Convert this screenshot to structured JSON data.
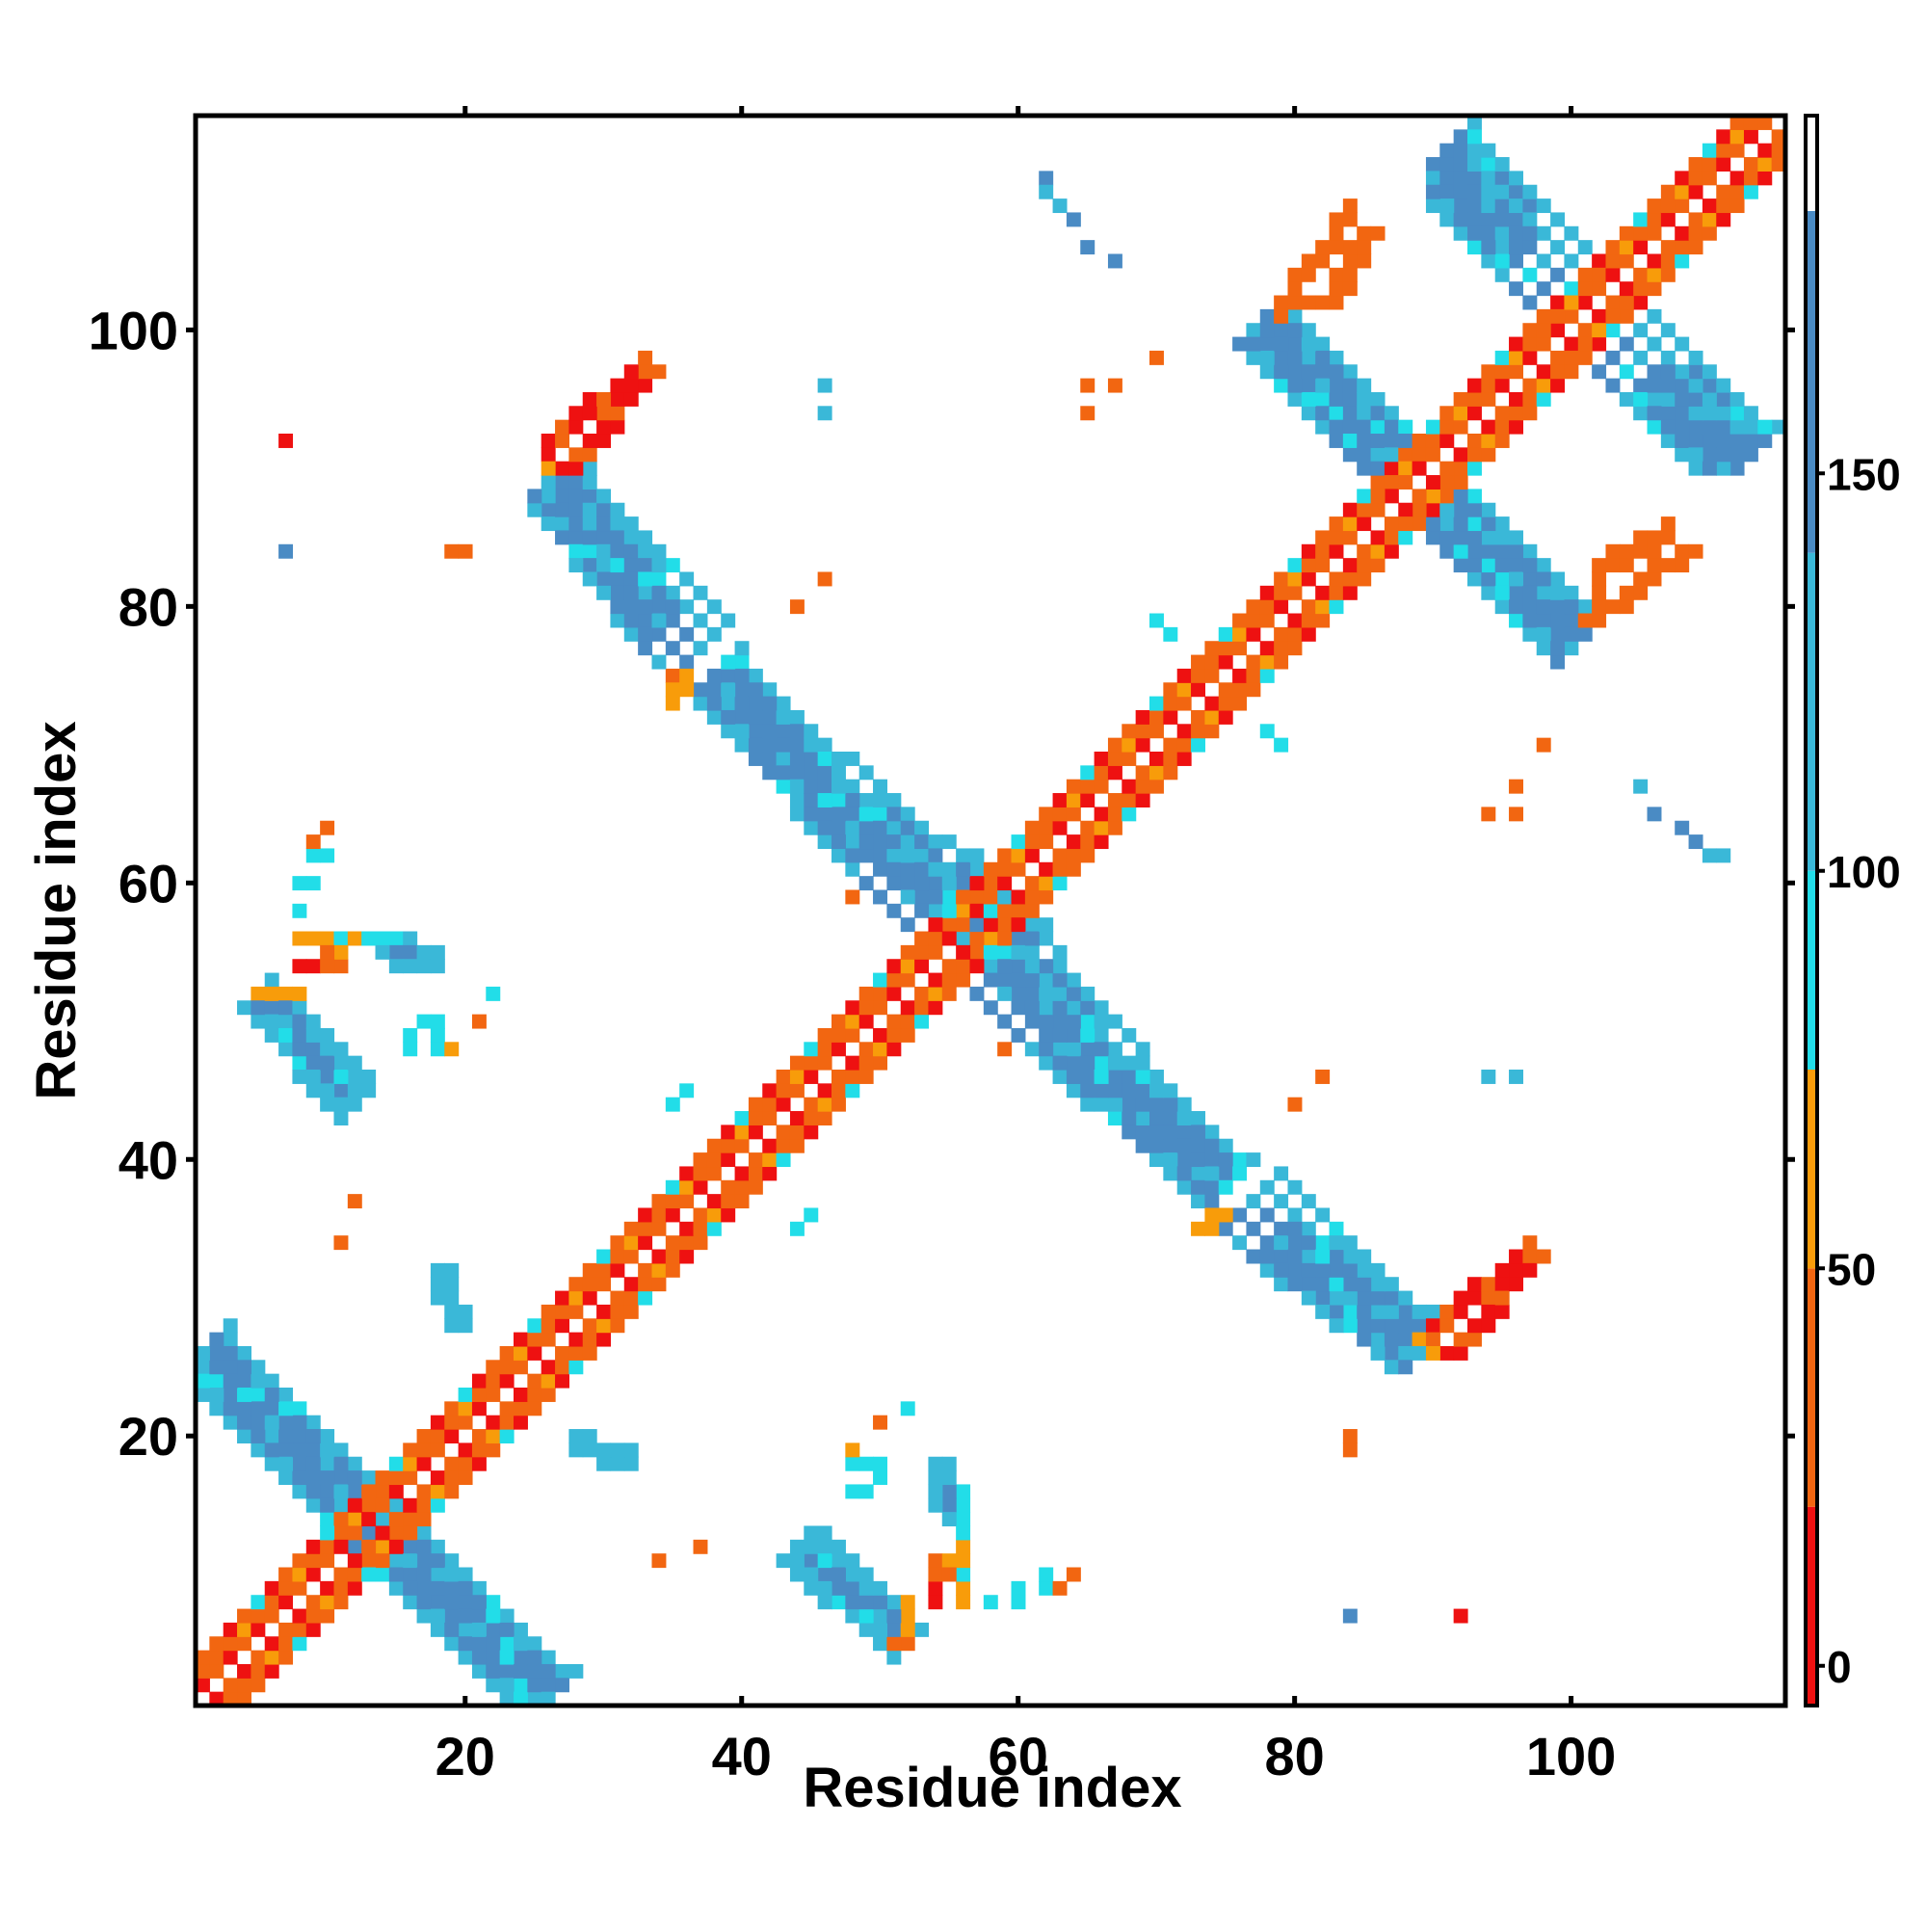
{
  "chart_data": {
    "type": "heatmap",
    "xlabel": "Residue index",
    "ylabel": "Residue index",
    "xlim": [
      1,
      115
    ],
    "ylim": [
      1,
      115
    ],
    "xticks": [
      20,
      40,
      60,
      80,
      100
    ],
    "yticks": [
      20,
      40,
      60,
      80,
      100
    ],
    "colorbar": {
      "ticks": [
        0,
        50,
        100,
        150
      ],
      "range": [
        -5,
        195
      ],
      "bands": [
        {
          "from": -5,
          "to": 20,
          "color": "#ee1111"
        },
        {
          "from": 20,
          "to": 50,
          "color": "#f26611"
        },
        {
          "from": 50,
          "to": 75,
          "color": "#f89c0a"
        },
        {
          "from": 75,
          "to": 100,
          "color": "#22dde8"
        },
        {
          "from": 100,
          "to": 140,
          "color": "#3ab8d8"
        },
        {
          "from": 140,
          "to": 183,
          "color": "#4a8bc4"
        },
        {
          "from": 183,
          "to": 195,
          "color": "#ffffff"
        }
      ]
    },
    "colors": {
      "red": "#ee1111",
      "orange": "#f26611",
      "amber": "#f89c0a",
      "cyan": "#22dde8",
      "teal": "#3ab8d8",
      "steel": "#4a8bc4"
    },
    "diagonal_band": {
      "from": 1,
      "to": 115,
      "half_width": 3
    },
    "antidiagonal_strands": [
      {
        "x0": 1,
        "y0": 25,
        "x1": 26,
        "y1": 1,
        "w": 3,
        "color": "steel"
      },
      {
        "x0": 27,
        "y0": 88,
        "x1": 37,
        "y1": 77,
        "w": 3,
        "color": "steel"
      },
      {
        "x0": 38,
        "y0": 74,
        "x1": 60,
        "y1": 55,
        "w": 3,
        "color": "steel"
      },
      {
        "x0": 58,
        "y0": 53,
        "x1": 75,
        "y1": 38,
        "w": 3,
        "color": "steel"
      },
      {
        "x0": 76,
        "y0": 36,
        "x1": 89,
        "y1": 26,
        "w": 3,
        "color": "steel"
      },
      {
        "x0": 77,
        "y0": 100,
        "x1": 88,
        "y1": 90,
        "w": 3,
        "color": "steel"
      },
      {
        "x0": 89,
        "y0": 88,
        "x1": 100,
        "y1": 78,
        "w": 3,
        "color": "steel"
      },
      {
        "x0": 91,
        "y0": 113,
        "x1": 100,
        "y1": 103,
        "w": 3,
        "color": "steel"
      },
      {
        "x0": 101,
        "y0": 100,
        "x1": 111,
        "y1": 91,
        "w": 3,
        "color": "steel"
      },
      {
        "x0": 5,
        "y0": 52,
        "x1": 12,
        "y1": 44,
        "w": 2,
        "color": "steel"
      },
      {
        "x0": 45,
        "y0": 12,
        "x1": 52,
        "y1": 5,
        "w": 2,
        "color": "steel"
      }
    ],
    "parallel_strands": [
      {
        "x0": 27,
        "y0": 90,
        "x1": 33,
        "y1": 97,
        "color": "red"
      },
      {
        "x0": 82,
        "y0": 102,
        "x1": 85,
        "y1": 107,
        "color": "orange"
      },
      {
        "x0": 91,
        "y0": 26,
        "x1": 97,
        "y1": 33,
        "color": "red"
      },
      {
        "x0": 101,
        "y0": 79,
        "x1": 108,
        "y1": 84,
        "color": "orange"
      }
    ],
    "cells": [
      {
        "x": 7,
        "y": 92,
        "color": "red"
      },
      {
        "x": 7,
        "y": 84,
        "color": "steel"
      },
      {
        "x": 19,
        "y": 84,
        "color": "orange"
      },
      {
        "x": 46,
        "y": 96,
        "color": "teal"
      },
      {
        "x": 46,
        "y": 94,
        "color": "teal"
      },
      {
        "x": 46,
        "y": 82,
        "color": "orange"
      },
      {
        "x": 44,
        "y": 80,
        "color": "orange"
      },
      {
        "x": 62,
        "y": 111,
        "color": "steel"
      },
      {
        "x": 63,
        "y": 109,
        "color": "teal"
      },
      {
        "x": 64,
        "y": 108,
        "color": "steel"
      },
      {
        "x": 65,
        "y": 106,
        "color": "steel"
      },
      {
        "x": 67,
        "y": 105,
        "color": "steel"
      },
      {
        "x": 65,
        "y": 96,
        "color": "orange"
      },
      {
        "x": 65,
        "y": 94,
        "color": "orange"
      },
      {
        "x": 67,
        "y": 96,
        "color": "orange"
      },
      {
        "x": 70,
        "y": 98,
        "color": "orange"
      },
      {
        "x": 79,
        "y": 101,
        "color": "orange"
      },
      {
        "x": 81,
        "y": 102,
        "color": "orange"
      },
      {
        "x": 71,
        "y": 78,
        "color": "cyan"
      },
      {
        "x": 79,
        "y": 70,
        "color": "cyan"
      },
      {
        "x": 98,
        "y": 70,
        "color": "orange"
      },
      {
        "x": 96,
        "y": 67,
        "color": "orange"
      },
      {
        "x": 94,
        "y": 65,
        "color": "orange"
      },
      {
        "x": 96,
        "y": 65,
        "color": "orange"
      },
      {
        "x": 105,
        "y": 67,
        "color": "teal"
      },
      {
        "x": 106,
        "y": 65,
        "color": "steel"
      },
      {
        "x": 108,
        "y": 64,
        "color": "steel"
      },
      {
        "x": 109,
        "y": 63,
        "color": "steel"
      },
      {
        "x": 110,
        "y": 62,
        "color": "teal"
      },
      {
        "x": 111,
        "y": 62,
        "color": "teal"
      },
      {
        "x": 35,
        "y": 74,
        "color": "amber"
      },
      {
        "x": 35,
        "y": 73,
        "color": "amber"
      },
      {
        "x": 35,
        "y": 75,
        "color": "orange"
      },
      {
        "x": 10,
        "y": 64,
        "color": "orange"
      },
      {
        "x": 9,
        "y": 62,
        "color": "cyan"
      },
      {
        "x": 10,
        "y": 62,
        "color": "cyan"
      },
      {
        "x": 9,
        "y": 60,
        "color": "cyan"
      },
      {
        "x": 9,
        "y": 56,
        "color": "amber"
      },
      {
        "x": 10,
        "y": 56,
        "color": "amber"
      },
      {
        "x": 11,
        "y": 56,
        "color": "cyan"
      },
      {
        "x": 12,
        "y": 56,
        "color": "amber"
      },
      {
        "x": 9,
        "y": 54,
        "color": "red"
      },
      {
        "x": 11,
        "y": 54,
        "color": "orange"
      },
      {
        "x": 11,
        "y": 55,
        "color": "amber"
      },
      {
        "x": 14,
        "y": 56,
        "color": "cyan"
      },
      {
        "x": 15,
        "y": 56,
        "color": "cyan"
      },
      {
        "x": 16,
        "y": 56,
        "color": "teal"
      },
      {
        "x": 15,
        "y": 55,
        "color": "steel"
      },
      {
        "x": 16,
        "y": 55,
        "color": "steel"
      },
      {
        "x": 17,
        "y": 55,
        "color": "teal"
      },
      {
        "x": 15,
        "y": 54,
        "color": "teal"
      },
      {
        "x": 17,
        "y": 54,
        "color": "teal"
      },
      {
        "x": 18,
        "y": 54,
        "color": "teal"
      },
      {
        "x": 5,
        "y": 52,
        "color": "amber"
      },
      {
        "x": 6,
        "y": 52,
        "color": "amber"
      },
      {
        "x": 7,
        "y": 52,
        "color": "amber"
      },
      {
        "x": 8,
        "y": 52,
        "color": "amber"
      },
      {
        "x": 17,
        "y": 50,
        "color": "cyan"
      },
      {
        "x": 18,
        "y": 50,
        "color": "cyan"
      },
      {
        "x": 16,
        "y": 48,
        "color": "cyan"
      },
      {
        "x": 18,
        "y": 49,
        "color": "cyan"
      },
      {
        "x": 18,
        "y": 48,
        "color": "cyan"
      },
      {
        "x": 19,
        "y": 48,
        "color": "amber"
      },
      {
        "x": 21,
        "y": 50,
        "color": "orange"
      },
      {
        "x": 22,
        "y": 52,
        "color": "cyan"
      },
      {
        "x": 12,
        "y": 37,
        "color": "orange"
      },
      {
        "x": 11,
        "y": 34,
        "color": "orange"
      },
      {
        "x": 18,
        "y": 32,
        "color": "teal"
      },
      {
        "x": 18,
        "y": 31,
        "color": "teal"
      },
      {
        "x": 18,
        "y": 30,
        "color": "teal"
      },
      {
        "x": 19,
        "y": 29,
        "color": "teal"
      },
      {
        "x": 19,
        "y": 28,
        "color": "teal"
      },
      {
        "x": 35,
        "y": 44,
        "color": "cyan"
      },
      {
        "x": 45,
        "y": 36,
        "color": "cyan"
      },
      {
        "x": 74,
        "y": 36,
        "color": "amber"
      },
      {
        "x": 75,
        "y": 36,
        "color": "amber"
      },
      {
        "x": 75,
        "y": 38,
        "color": "cyan"
      },
      {
        "x": 82,
        "y": 46,
        "color": "orange"
      },
      {
        "x": 80,
        "y": 44,
        "color": "orange"
      },
      {
        "x": 94,
        "y": 46,
        "color": "teal"
      },
      {
        "x": 96,
        "y": 46,
        "color": "teal"
      },
      {
        "x": 59,
        "y": 48,
        "color": "orange"
      },
      {
        "x": 89,
        "y": 27,
        "color": "amber"
      },
      {
        "x": 90,
        "y": 27,
        "color": "orange"
      },
      {
        "x": 90,
        "y": 26,
        "color": "amber"
      },
      {
        "x": 28,
        "y": 20,
        "color": "teal"
      },
      {
        "x": 29,
        "y": 20,
        "color": "teal"
      },
      {
        "x": 30,
        "y": 19,
        "color": "teal"
      },
      {
        "x": 31,
        "y": 19,
        "color": "teal"
      },
      {
        "x": 32,
        "y": 19,
        "color": "teal"
      },
      {
        "x": 50,
        "y": 21,
        "color": "orange"
      },
      {
        "x": 52,
        "y": 22,
        "color": "cyan"
      },
      {
        "x": 48,
        "y": 19,
        "color": "amber"
      },
      {
        "x": 48,
        "y": 18,
        "color": "cyan"
      },
      {
        "x": 49,
        "y": 18,
        "color": "cyan"
      },
      {
        "x": 50,
        "y": 18,
        "color": "cyan"
      },
      {
        "x": 48,
        "y": 16,
        "color": "cyan"
      },
      {
        "x": 49,
        "y": 16,
        "color": "cyan"
      },
      {
        "x": 54,
        "y": 17,
        "color": "teal"
      },
      {
        "x": 55,
        "y": 17,
        "color": "teal"
      },
      {
        "x": 55,
        "y": 18,
        "color": "teal"
      },
      {
        "x": 54,
        "y": 16,
        "color": "teal"
      },
      {
        "x": 55,
        "y": 16,
        "color": "steel"
      },
      {
        "x": 56,
        "y": 16,
        "color": "cyan"
      },
      {
        "x": 55,
        "y": 15,
        "color": "steel"
      },
      {
        "x": 56,
        "y": 15,
        "color": "cyan"
      },
      {
        "x": 55,
        "y": 14,
        "color": "teal"
      },
      {
        "x": 56,
        "y": 14,
        "color": "cyan"
      },
      {
        "x": 56,
        "y": 13,
        "color": "cyan"
      },
      {
        "x": 56,
        "y": 11,
        "color": "amber"
      },
      {
        "x": 54,
        "y": 10,
        "color": "orange"
      },
      {
        "x": 55,
        "y": 10,
        "color": "orange"
      },
      {
        "x": 56,
        "y": 10,
        "color": "cyan"
      },
      {
        "x": 56,
        "y": 9,
        "color": "amber"
      },
      {
        "x": 56,
        "y": 8,
        "color": "amber"
      },
      {
        "x": 54,
        "y": 8,
        "color": "red"
      },
      {
        "x": 58,
        "y": 8,
        "color": "cyan"
      },
      {
        "x": 60,
        "y": 8,
        "color": "cyan"
      },
      {
        "x": 60,
        "y": 9,
        "color": "cyan"
      },
      {
        "x": 63,
        "y": 9,
        "color": "orange"
      },
      {
        "x": 52,
        "y": 6,
        "color": "amber"
      },
      {
        "x": 52,
        "y": 7,
        "color": "amber"
      },
      {
        "x": 52,
        "y": 8,
        "color": "amber"
      },
      {
        "x": 52,
        "y": 5,
        "color": "orange"
      },
      {
        "x": 51,
        "y": 5,
        "color": "orange"
      },
      {
        "x": 34,
        "y": 11,
        "color": "orange"
      },
      {
        "x": 37,
        "y": 12,
        "color": "orange"
      },
      {
        "x": 84,
        "y": 7,
        "color": "steel"
      },
      {
        "x": 92,
        "y": 7,
        "color": "red"
      },
      {
        "x": 84,
        "y": 19,
        "color": "orange"
      },
      {
        "x": 84,
        "y": 20,
        "color": "orange"
      }
    ]
  }
}
